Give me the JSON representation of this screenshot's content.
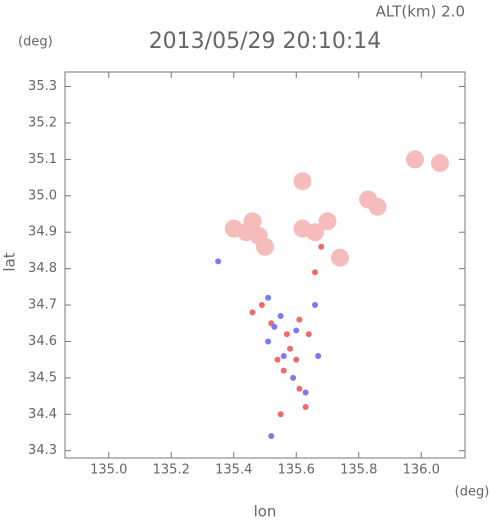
{
  "chart_data": {
    "type": "scatter",
    "title": "2013/05/29 20:10:14",
    "altitude_label": "ALT(km) 2.0",
    "y_unit": "(deg)",
    "x_unit": "(deg)",
    "x_label": "lon",
    "y_label": "lat",
    "xlim": [
      134.86,
      136.14
    ],
    "ylim": [
      34.28,
      35.34
    ],
    "xticks": [
      {
        "value": 135,
        "label": "135.0"
      },
      135.2,
      135.4,
      135.6,
      135.8,
      {
        "value": 136,
        "label": "136.0"
      }
    ],
    "yticks": [
      34.3,
      34.4,
      34.5,
      34.6,
      34.7,
      34.8,
      34.9,
      {
        "value": 35,
        "label": "35.0"
      },
      35.1,
      35.2,
      35.3
    ],
    "series": [
      {
        "color": "#f6bcbc",
        "marker_size": 9,
        "x": [
          135.4,
          135.44,
          135.48,
          135.5,
          135.46,
          135.62,
          135.66,
          135.7,
          135.83,
          135.86,
          135.98,
          136.06,
          135.62,
          135.74
        ],
        "values": [
          34.91,
          34.9,
          34.89,
          34.86,
          34.93,
          34.91,
          34.9,
          34.93,
          34.99,
          34.97,
          35.1,
          35.09,
          35.04,
          34.83
        ]
      },
      {
        "color": "#f06a6a",
        "marker_size": 3,
        "x": [
          135.49,
          135.52,
          135.57,
          135.61,
          135.64,
          135.58,
          135.6,
          135.56,
          135.61,
          135.63,
          135.55,
          135.46,
          135.66,
          135.68,
          135.54
        ],
        "values": [
          34.7,
          34.65,
          34.62,
          34.66,
          34.62,
          34.58,
          34.55,
          34.52,
          34.47,
          34.42,
          34.4,
          34.68,
          34.79,
          34.86,
          34.55
        ]
      },
      {
        "color": "#7a7af2",
        "marker_size": 3,
        "x": [
          135.51,
          135.55,
          135.6,
          135.51,
          135.56,
          135.67,
          135.59,
          135.63,
          135.52,
          135.35,
          135.66,
          135.53
        ],
        "values": [
          34.72,
          34.67,
          34.63,
          34.6,
          34.56,
          34.56,
          34.5,
          34.46,
          34.34,
          34.82,
          34.7,
          34.64
        ]
      }
    ]
  }
}
